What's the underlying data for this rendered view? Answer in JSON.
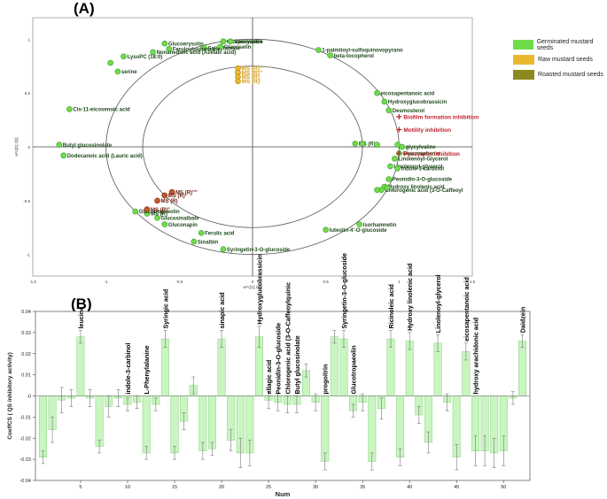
{
  "panel_a_label": "(A)",
  "panel_b_label": "(B)",
  "colors": {
    "germinated": "#6fdc4a",
    "raw": "#e8b830",
    "roasted": "#8a8a1e",
    "ms_point": "#c4572a",
    "response": "#c0202a",
    "bar_fill": "#c8f5c0",
    "bar_stroke": "#8ccf82"
  },
  "chart_data": [
    {
      "type": "scatter",
      "title": "",
      "xlabel": "w*c[1]; t[1]",
      "ylabel": "w*c[2]; t[2]",
      "xlim": [
        -1.5,
        1.5
      ],
      "ylim": [
        -1.2,
        1.2
      ],
      "x_ticks": [
        "-1.5",
        "-1",
        "-0.5",
        "0",
        "0.5",
        "1",
        "1.5"
      ],
      "y_ticks": [
        "1",
        "0.5",
        "0",
        "-0.5",
        "-1"
      ],
      "legend": [
        {
          "label": "Germinated mustard seeds",
          "color": "#6fdc4a"
        },
        {
          "label": "Raw mustard seeds",
          "color": "#e8b830"
        },
        {
          "label": "Roasted mustard seeds",
          "color": "#8a8a1e"
        }
      ],
      "points": [
        {
          "x": -0.2,
          "y": 0.98,
          "label": "Glucoerysolin",
          "group": "g"
        },
        {
          "x": -0.15,
          "y": 0.98,
          "label": "Spermidine",
          "group": "g"
        },
        {
          "x": -0.33,
          "y": 0.92,
          "label": "Salicylamide",
          "group": "g"
        },
        {
          "x": -0.22,
          "y": 0.93,
          "label": "Glucoselin",
          "group": "g"
        },
        {
          "x": -0.6,
          "y": 0.96,
          "label": "Glucoerysolin",
          "group": "g"
        },
        {
          "x": -0.57,
          "y": 0.91,
          "label": "Feruloylputrescine",
          "group": "g"
        },
        {
          "x": -0.68,
          "y": 0.88,
          "label": "Nonanedioic acid (Azelaic acid)",
          "group": "g"
        },
        {
          "x": -0.88,
          "y": 0.84,
          "label": "LysoPC (18:0)",
          "group": "g"
        },
        {
          "x": -0.97,
          "y": 0.78,
          "label": "",
          "group": "g"
        },
        {
          "x": -0.92,
          "y": 0.7,
          "label": "serine",
          "group": "g"
        },
        {
          "x": -1.25,
          "y": 0.35,
          "label": "Cis-11-eicosenoic acid",
          "group": "g"
        },
        {
          "x": -1.32,
          "y": 0.02,
          "label": "Butyl glucosinolate",
          "group": "g"
        },
        {
          "x": -1.29,
          "y": -0.08,
          "label": "Dodecanoic acid (Lauric acid)",
          "group": "g"
        },
        {
          "x": 0.45,
          "y": 0.9,
          "label": "1-palmitoyl-sulfoquinovopyrano",
          "group": "g"
        },
        {
          "x": 0.53,
          "y": 0.85,
          "label": "beta-tocopherol",
          "group": "g"
        },
        {
          "x": 0.85,
          "y": 0.5,
          "label": "eicosapentanoic acid",
          "group": "g"
        },
        {
          "x": 0.9,
          "y": 0.42,
          "label": "Hydroxyglucobrassicin",
          "group": "g"
        },
        {
          "x": 0.93,
          "y": 0.34,
          "label": "Desmosterol",
          "group": "g"
        },
        {
          "x": 0.7,
          "y": 0.03,
          "label": "MS (R)",
          "group": "g"
        },
        {
          "x": 0.75,
          "y": 0.03,
          "label": "",
          "group": "g"
        },
        {
          "x": 0.85,
          "y": 0.02,
          "label": "",
          "group": "g"
        },
        {
          "x": 0.99,
          "y": 0.02,
          "label": "",
          "group": "g"
        },
        {
          "x": 1.02,
          "y": 0.0,
          "label": "glycylvaline",
          "group": "g"
        },
        {
          "x": 1.0,
          "y": -0.06,
          "label": "Glucoraphanin",
          "group": "g"
        },
        {
          "x": 0.97,
          "y": -0.11,
          "label": "Linolenoyl-Glycerol",
          "group": "g"
        },
        {
          "x": 0.94,
          "y": -0.18,
          "label": "Linolenoyl-glycerol",
          "group": "g"
        },
        {
          "x": 0.99,
          "y": -0.2,
          "label": "Indole-3-carbinol",
          "group": "g"
        },
        {
          "x": 0.93,
          "y": -0.3,
          "label": "Peonidin-3-O-glucoside",
          "group": "g"
        },
        {
          "x": 0.9,
          "y": -0.37,
          "label": "Hydroxy linolenic acid",
          "group": "g"
        },
        {
          "x": 0.88,
          "y": -0.4,
          "label": "Chlorogenic acid (3-O-Caffeoyl",
          "group": "g"
        },
        {
          "x": 0.85,
          "y": -0.4,
          "label": "",
          "group": "g"
        },
        {
          "x": 0.92,
          "y": -0.38,
          "label": "",
          "group": "g"
        },
        {
          "x": 0.73,
          "y": -0.72,
          "label": "Isorhamnetin",
          "group": "g"
        },
        {
          "x": 0.5,
          "y": -0.77,
          "label": "luteolin-4'-O-glucoside",
          "group": "g"
        },
        {
          "x": -0.2,
          "y": -0.95,
          "label": "Syringetin-3-O-glucoside",
          "group": "g"
        },
        {
          "x": -0.35,
          "y": -0.8,
          "label": "Ferulic acid",
          "group": "g"
        },
        {
          "x": -0.4,
          "y": -0.88,
          "label": "Sinalbin",
          "group": "g"
        },
        {
          "x": -0.6,
          "y": -0.72,
          "label": "Gluconapin",
          "group": "g"
        },
        {
          "x": -0.65,
          "y": -0.66,
          "label": "Glucosinalbate",
          "group": "g"
        },
        {
          "x": -0.72,
          "y": -0.62,
          "label": "MS (R)",
          "group": "g"
        },
        {
          "x": -0.8,
          "y": -0.6,
          "label": "Glucotropaeolin",
          "group": "g"
        },
        {
          "x": -0.1,
          "y": 0.73,
          "label": "MS (R)'''",
          "group": "r"
        },
        {
          "x": -0.1,
          "y": 0.69,
          "label": "MS (R)''",
          "group": "r"
        },
        {
          "x": -0.1,
          "y": 0.65,
          "label": "MS (R)",
          "group": "r"
        },
        {
          "x": -0.1,
          "y": 0.61,
          "label": "MS (R)'",
          "group": "r"
        },
        {
          "x": -0.55,
          "y": -0.42,
          "label": "MS (R)''''",
          "group": "m"
        },
        {
          "x": -0.6,
          "y": -0.45,
          "label": "MS (R)'",
          "group": "m"
        },
        {
          "x": -0.65,
          "y": -0.5,
          "label": "MS (R)",
          "group": "m"
        },
        {
          "x": -0.72,
          "y": -0.58,
          "label": "MS (R)''",
          "group": "m"
        }
      ],
      "responses": [
        {
          "x": 1.0,
          "y": 0.28,
          "label": "Biofilm formation inhibition"
        },
        {
          "x": 1.0,
          "y": 0.16,
          "label": "Motility inhibition"
        },
        {
          "x": 1.0,
          "y": -0.06,
          "label": "Pyocyanin inhibition"
        }
      ]
    },
    {
      "type": "bar",
      "title": "",
      "xlabel": "Num",
      "ylabel": "CoeffCS ( QS inhibitory activity)",
      "ylim": [
        -0.04,
        0.04
      ],
      "y_ticks": [
        "0.04",
        "0.03",
        "0.02",
        "0.01",
        "-0",
        "-0.01",
        "-0.02",
        "-0.03",
        "-0.04"
      ],
      "x_ticks": [
        "5",
        "10",
        "15",
        "20",
        "25",
        "30",
        "35",
        "40",
        "45",
        "50"
      ],
      "categories": [
        "1",
        "2",
        "3",
        "4",
        "5",
        "6",
        "7",
        "8",
        "9",
        "10",
        "11",
        "12",
        "13",
        "14",
        "15",
        "16",
        "17",
        "18",
        "19",
        "20",
        "21",
        "22",
        "23",
        "24",
        "25",
        "26",
        "27",
        "28",
        "29",
        "30",
        "31",
        "32",
        "33",
        "34",
        "35",
        "36",
        "37",
        "38",
        "39",
        "40",
        "41",
        "42",
        "43",
        "44",
        "45",
        "46",
        "47",
        "48",
        "49",
        "50",
        "51",
        "52"
      ],
      "values": [
        -0.029,
        -0.016,
        -0.002,
        -0.001,
        0.028,
        -0.001,
        -0.024,
        -0.005,
        -0.001,
        -0.004,
        -0.003,
        -0.027,
        -0.004,
        0.027,
        -0.027,
        -0.012,
        0.005,
        -0.026,
        -0.025,
        0.027,
        -0.021,
        -0.027,
        -0.027,
        0.028,
        -0.002,
        -0.003,
        -0.004,
        -0.004,
        0.012,
        -0.003,
        -0.031,
        0.028,
        0.027,
        -0.007,
        -0.003,
        -0.031,
        -0.006,
        0.027,
        -0.029,
        0.026,
        -0.009,
        -0.022,
        0.025,
        -0.003,
        -0.029,
        0.021,
        -0.026,
        -0.026,
        -0.027,
        -0.026,
        -0.001,
        0.026
      ],
      "errors": [
        0.003,
        0.006,
        0.006,
        0.004,
        0.003,
        0.004,
        0.003,
        0.005,
        0.004,
        0.003,
        0.003,
        0.003,
        0.003,
        0.004,
        0.003,
        0.004,
        0.004,
        0.004,
        0.003,
        0.004,
        0.005,
        0.007,
        0.006,
        0.005,
        0.004,
        0.004,
        0.004,
        0.004,
        0.003,
        0.004,
        0.004,
        0.003,
        0.004,
        0.003,
        0.004,
        0.004,
        0.005,
        0.004,
        0.004,
        0.004,
        0.004,
        0.005,
        0.004,
        0.004,
        0.006,
        0.004,
        0.007,
        0.007,
        0.007,
        0.007,
        0.003,
        0.003
      ],
      "bar_labels": [
        {
          "index": 5,
          "label": "leucine"
        },
        {
          "index": 10,
          "label": "indole-3-carbinol"
        },
        {
          "index": 12,
          "label": "L-Phenylalanine"
        },
        {
          "index": 14,
          "label": "Syringic acid"
        },
        {
          "index": 20,
          "label": "sinapic acid"
        },
        {
          "index": 24,
          "label": "Hydroxyglucobrassicin"
        },
        {
          "index": 25,
          "label": "ellagic acid"
        },
        {
          "index": 26,
          "label": "Peonidin-3-O-glucoside"
        },
        {
          "index": 27,
          "label": "Chlorogenic acid (3-O-Caffeoylquinic"
        },
        {
          "index": 28,
          "label": "Butyl glucosinolate"
        },
        {
          "index": 31,
          "label": "progoitrin"
        },
        {
          "index": 33,
          "label": "Syringetin-3-O-glucoside"
        },
        {
          "index": 34,
          "label": "Glucotropaeolin"
        },
        {
          "index": 38,
          "label": "Ricinoleic acid"
        },
        {
          "index": 40,
          "label": "Hydroxy linolenic acid"
        },
        {
          "index": 43,
          "label": "Linolenoyl-glycerol"
        },
        {
          "index": 46,
          "label": "eicosapentanoic acid"
        },
        {
          "index": 47,
          "label": "hydroxy arachidonic acid"
        },
        {
          "index": 52,
          "label": "Daidzein"
        }
      ]
    }
  ]
}
